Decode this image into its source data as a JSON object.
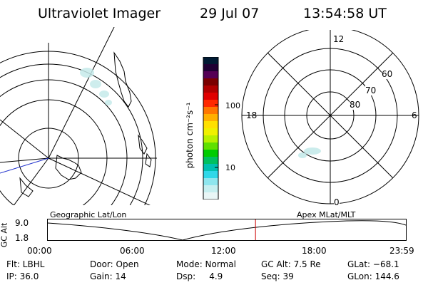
{
  "header": {
    "title": "Ultraviolet Imager",
    "date": "29 Jul 07",
    "time": "13:54:58 UT"
  },
  "polar_plot": {
    "mlt_labels": {
      "top": "12",
      "left": "18",
      "right": "6",
      "bottom": "0"
    },
    "lat_labels": [
      "60",
      "70",
      "80"
    ]
  },
  "colorbar": {
    "unit_label": "photon cm⁻²s⁻¹",
    "tick_labels": [
      "100",
      "10"
    ],
    "colors": [
      "#001a33",
      "#1f0033",
      "#550055",
      "#7a0000",
      "#b00000",
      "#e00000",
      "#ff2a00",
      "#ff7700",
      "#ffb000",
      "#ffe000",
      "#f0f000",
      "#b8f000",
      "#60e000",
      "#00cc00",
      "#00c060",
      "#00c0b0",
      "#30d8e8",
      "#8ee6ee",
      "#c6eff0",
      "#e9f6f6"
    ]
  },
  "projection_labels": {
    "left": "Geographic Lat/Lon",
    "right": "Apex  MLat/MLT"
  },
  "timeline": {
    "axis_label": "GC Alt",
    "y_labels": [
      "9.0",
      "1.8"
    ],
    "x_labels": [
      "00:00",
      "06:00",
      "12:00",
      "18:00",
      "23:59"
    ],
    "current_time_hours": 13.92,
    "cursor_color": "#cc0000"
  },
  "status": {
    "flt": "Flt: LBHL",
    "ip": "IP: 36.0",
    "door": "Door: Open",
    "gain": "Gain: 14",
    "mode": "Mode: Normal",
    "dsp": "Dsp:     4.9",
    "gc_alt": "GC Alt: 7.5 Re",
    "seq": "Seq: 39",
    "glat": "GLat: −68.1",
    "glon": "GLon: 144.6"
  }
}
